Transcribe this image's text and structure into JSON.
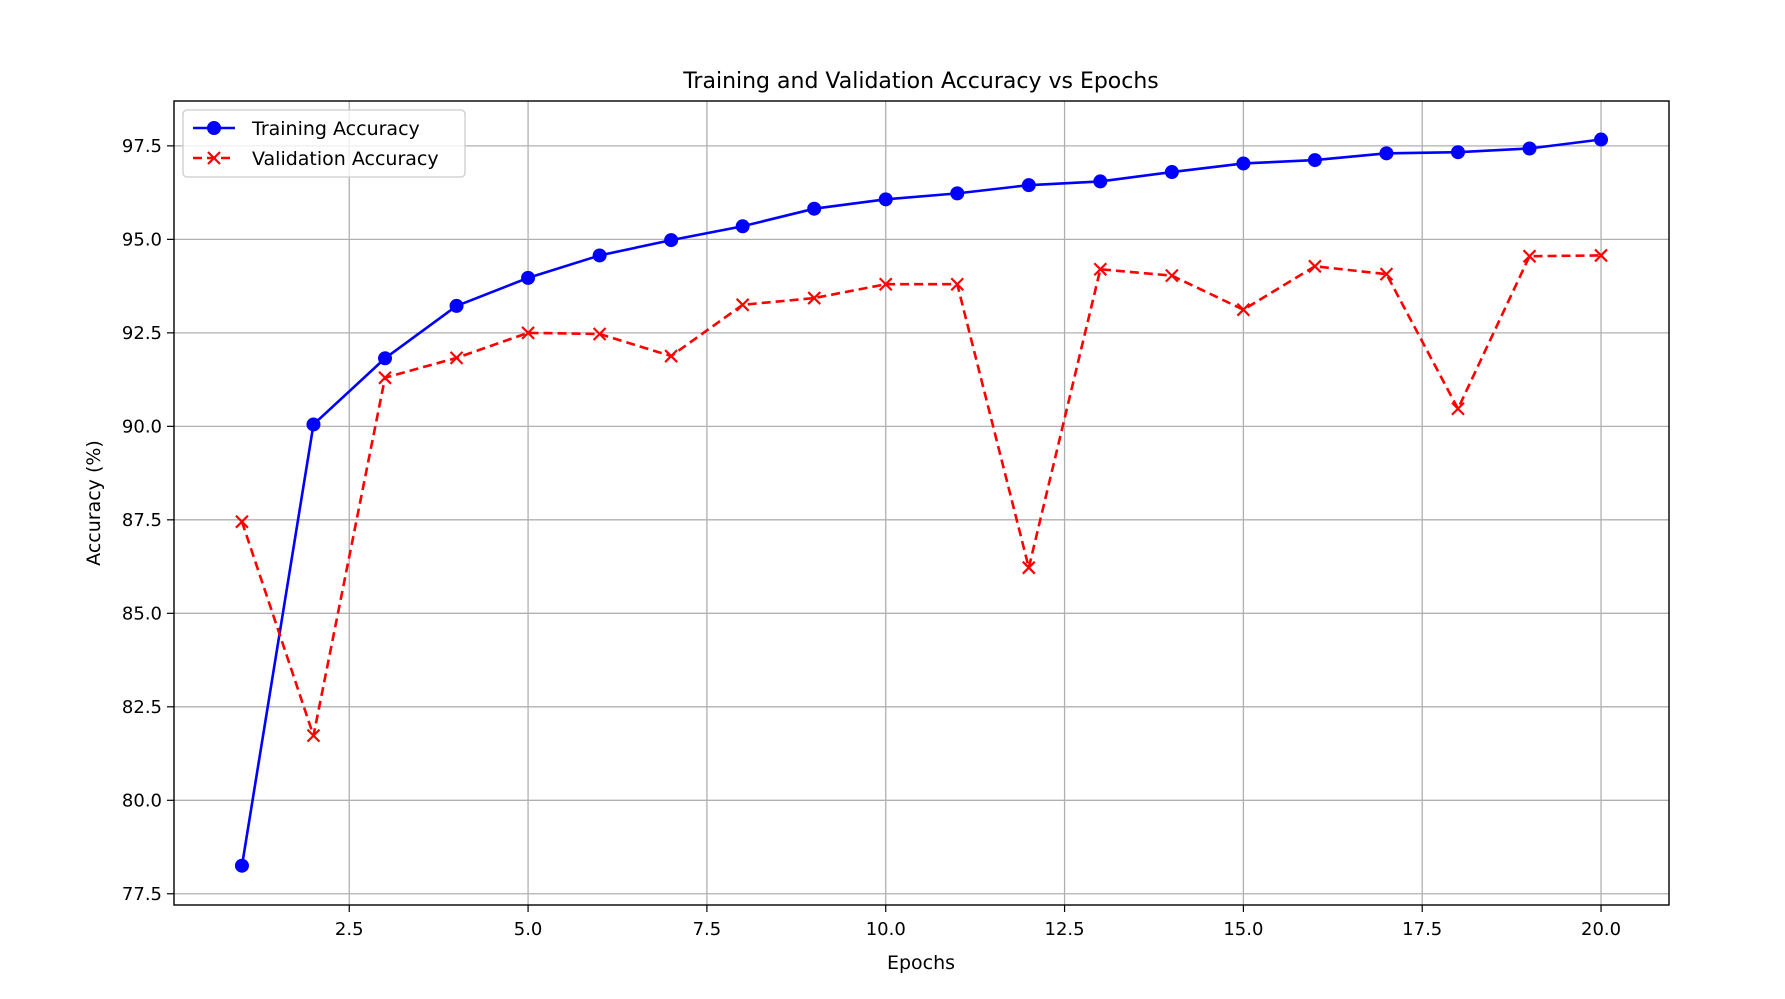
{
  "chart_data": {
    "type": "line",
    "title": "Training and Validation Accuracy vs Epochs",
    "xlabel": "Epochs",
    "ylabel": "Accuracy (%)",
    "x": [
      1,
      2,
      3,
      4,
      5,
      6,
      7,
      8,
      9,
      10,
      11,
      12,
      13,
      14,
      15,
      16,
      17,
      18,
      19,
      20
    ],
    "xlim": [
      0.05,
      20.95
    ],
    "ylim": [
      77.2,
      98.7
    ],
    "xticks": [
      2.5,
      5.0,
      7.5,
      10.0,
      12.5,
      15.0,
      17.5,
      20.0
    ],
    "xtick_labels": [
      "2.5",
      "5.0",
      "7.5",
      "10.0",
      "12.5",
      "15.0",
      "17.5",
      "20.0"
    ],
    "yticks": [
      77.5,
      80.0,
      82.5,
      85.0,
      87.5,
      90.0,
      92.5,
      95.0,
      97.5
    ],
    "ytick_labels": [
      "77.5",
      "80.0",
      "82.5",
      "85.0",
      "87.5",
      "90.0",
      "92.5",
      "95.0",
      "97.5"
    ],
    "grid": true,
    "legend_position": "top-left",
    "series": [
      {
        "name": "Training Accuracy",
        "color": "#0000ff",
        "marker": "circle",
        "linestyle": "solid",
        "values": [
          78.25,
          90.05,
          91.82,
          93.22,
          93.97,
          94.57,
          94.98,
          95.35,
          95.82,
          96.07,
          96.23,
          96.45,
          96.55,
          96.8,
          97.03,
          97.12,
          97.3,
          97.33,
          97.43,
          97.67
        ]
      },
      {
        "name": "Validation Accuracy",
        "color": "#ff0000",
        "marker": "x",
        "linestyle": "dashed",
        "values": [
          87.45,
          81.73,
          91.3,
          91.83,
          92.5,
          92.47,
          91.88,
          93.25,
          93.43,
          93.8,
          93.8,
          86.22,
          94.2,
          94.03,
          93.12,
          94.28,
          94.07,
          90.47,
          94.55,
          94.57
        ]
      }
    ]
  }
}
